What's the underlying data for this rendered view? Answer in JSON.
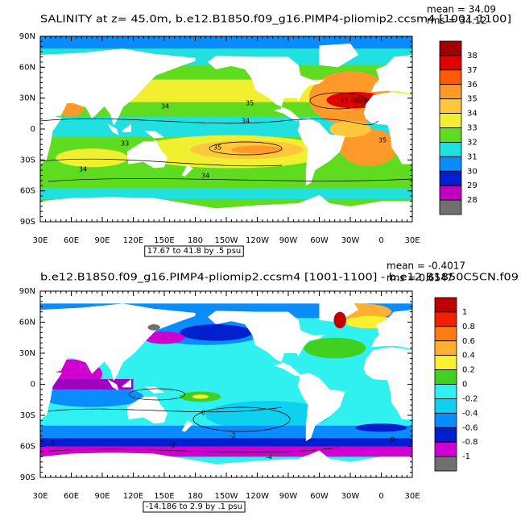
{
  "panels": [
    {
      "title": "SALINITY at z=   45.0m, b.e12.B1850.f09_g16.PIMP4-pliomip2.ccsm4 [1001-1100]",
      "mean": "mean = 34.09",
      "rms": "rms = 34.12",
      "contour_info": "17.67 to 41.8 by .5 psu",
      "colorbar": {
        "labels": [
          "38",
          "37",
          "36",
          "35",
          "34",
          "33",
          "32",
          "31",
          "30",
          "29",
          "28"
        ],
        "colors": [
          "#a00000",
          "#e00000",
          "#ff5a00",
          "#ff9a2a",
          "#ffc83c",
          "#f0f030",
          "#60dc20",
          "#20e0e0",
          "#0a8cff",
          "#0020d0",
          "#c000c0",
          "#707070"
        ]
      },
      "contour_labels": [
        "34",
        "34",
        "33",
        "35",
        "34",
        "34",
        "35",
        "37",
        "35"
      ]
    },
    {
      "title": "b.e12.B1850.f09_g16.PIMP4-pliomip2.ccsm4 [1001-1100] - b.e12.B1850C5CN.f09",
      "mean": "mean = -0.4017",
      "rms": "rms = 0.6547",
      "contour_info": "-14.186 to 2.9 by .1 psu",
      "colorbar": {
        "labels": [
          "1",
          "0.8",
          "0.6",
          "0.4",
          "0.2",
          "0",
          "-0.2",
          "-0.4",
          "-0.6",
          "-0.8",
          "-1"
        ],
        "colors": [
          "#c00000",
          "#f02000",
          "#ff7a10",
          "#ffb030",
          "#f8f030",
          "#40d020",
          "#30f0f0",
          "#10d0f0",
          "#0a8cff",
          "#0020d0",
          "#d000d0",
          "#707070"
        ]
      },
      "contour_labels": [
        "0",
        "-2",
        "-2",
        "-2",
        "-4",
        "0"
      ]
    }
  ],
  "lat_labels": [
    "90N",
    "60N",
    "30N",
    "0",
    "30S",
    "60S",
    "90S"
  ],
  "lon_labels": [
    "30E",
    "60E",
    "90E",
    "120E",
    "150E",
    "180",
    "150W",
    "120W",
    "90W",
    "60W",
    "30W",
    "0",
    "30E"
  ]
}
